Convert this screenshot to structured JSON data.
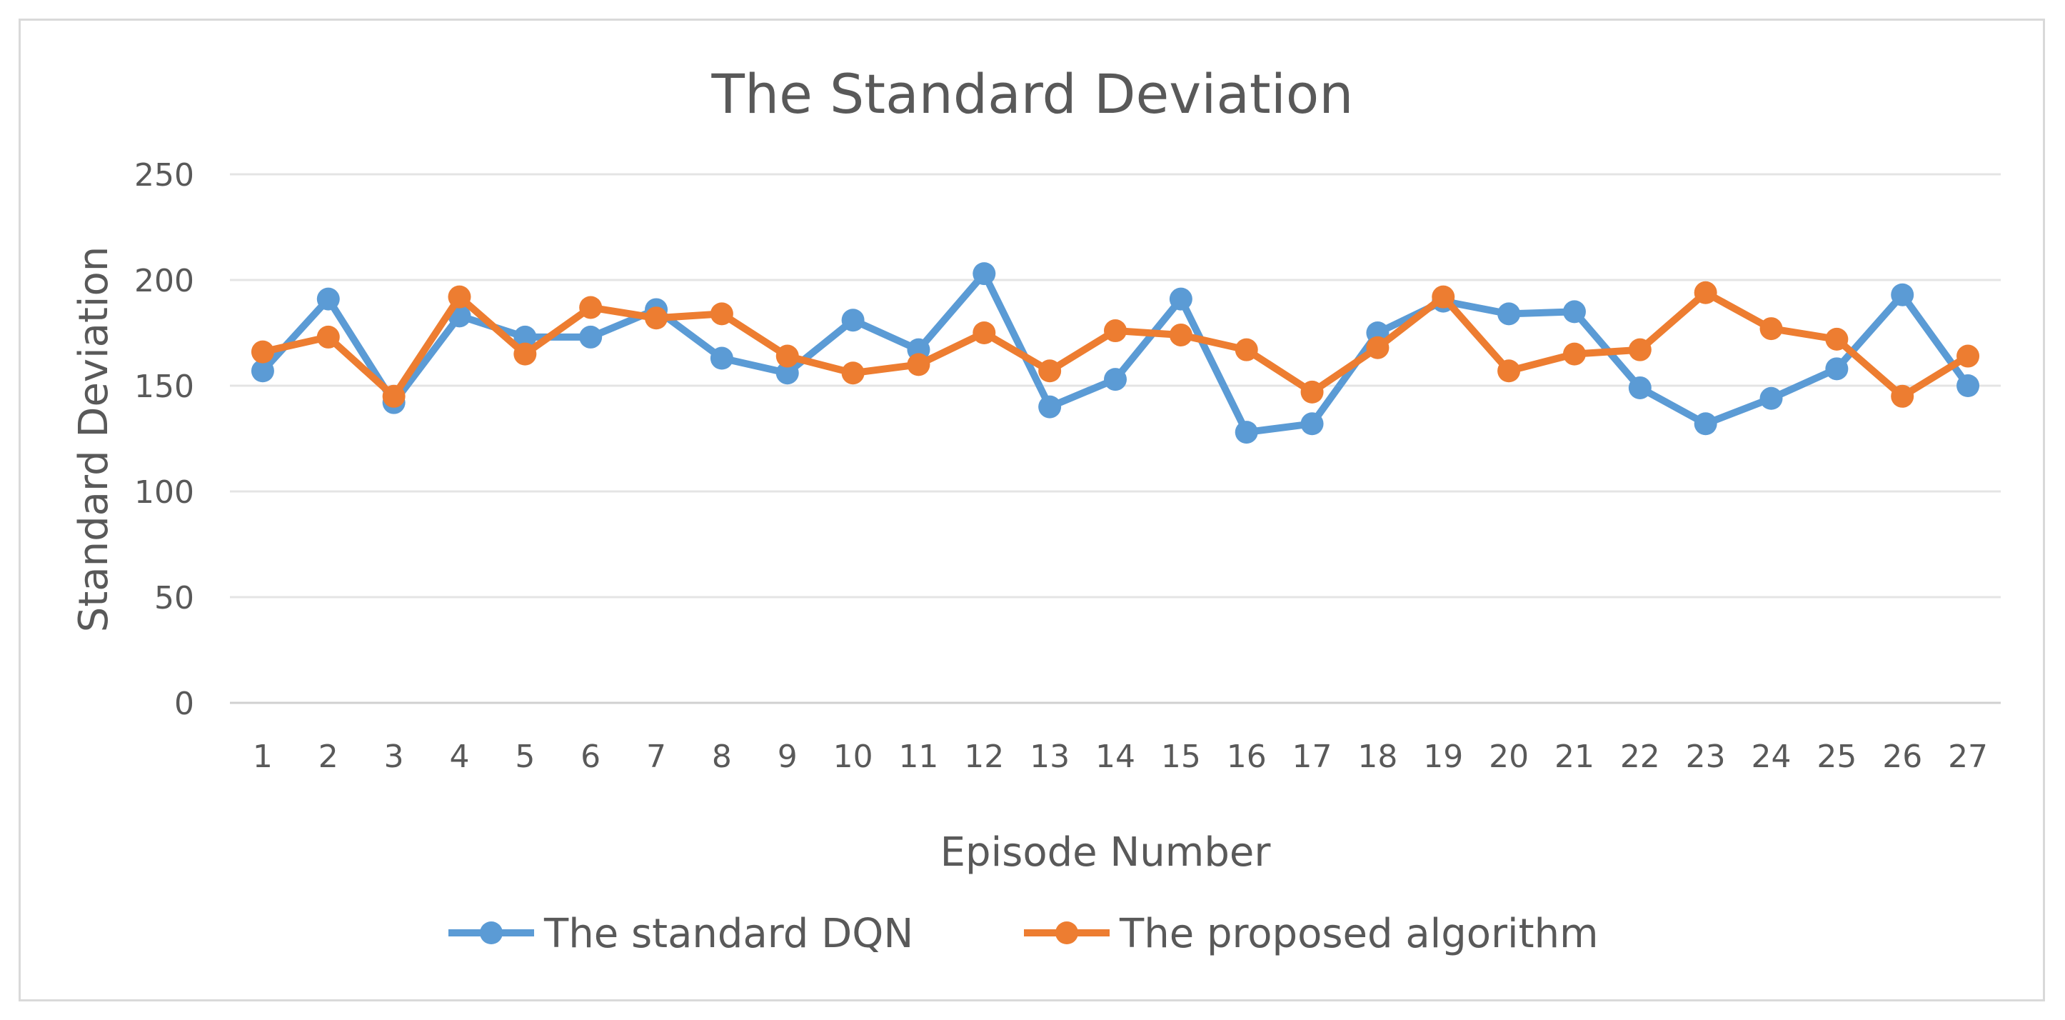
{
  "chart_data": {
    "type": "line",
    "title": "The Standard Deviation",
    "xlabel": "Episode Number",
    "ylabel": "Standard Deviation",
    "ylim": [
      0,
      250
    ],
    "y_ticks": [
      0,
      50,
      100,
      150,
      200,
      250
    ],
    "grid": true,
    "legend_position": "bottom",
    "categories": [
      "1",
      "2",
      "3",
      "4",
      "5",
      "6",
      "7",
      "8",
      "9",
      "10",
      "11",
      "12",
      "13",
      "14",
      "15",
      "16",
      "17",
      "18",
      "19",
      "20",
      "21",
      "22",
      "23",
      "24",
      "25",
      "26",
      "27"
    ],
    "series": [
      {
        "name": "The standard DQN",
        "color": "#5b9bd5",
        "values": [
          157,
          191,
          142,
          183,
          173,
          173,
          186,
          163,
          156,
          181,
          167,
          203,
          140,
          153,
          191,
          128,
          132,
          175,
          190,
          184,
          185,
          149,
          132,
          144,
          158,
          193,
          150
        ]
      },
      {
        "name": "The proposed algorithm",
        "color": "#ed7d31",
        "values": [
          166,
          173,
          145,
          192,
          165,
          187,
          182,
          184,
          164,
          156,
          160,
          175,
          157,
          176,
          174,
          167,
          147,
          168,
          192,
          157,
          165,
          167,
          194,
          177,
          172,
          145,
          164
        ]
      }
    ]
  }
}
